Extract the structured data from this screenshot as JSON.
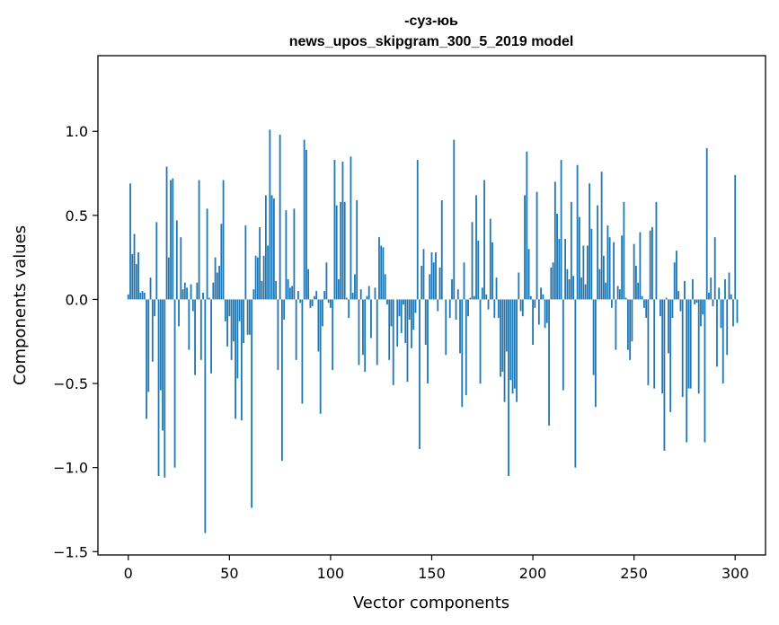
{
  "chart_data": {
    "type": "bar",
    "title_line1": "-суз-юь",
    "title_line2": "news_upos_skipgram_300_5_2019 model",
    "xlabel": "Vector components",
    "ylabel": "Components values",
    "xlim": [
      -15,
      315
    ],
    "ylim": [
      -1.52,
      1.45
    ],
    "xticks": [
      0,
      50,
      100,
      150,
      200,
      250,
      300
    ],
    "yticks": [
      1.0,
      0.5,
      0.0,
      -0.5,
      -1.0,
      -1.5
    ],
    "ytick_labels": [
      "1.0",
      "0.5",
      "0.0",
      "−0.5",
      "−1.0",
      "−1.5"
    ],
    "bar_color": "#1f77b4",
    "values": [
      0.03,
      0.69,
      0.27,
      0.39,
      0.21,
      0.28,
      0.04,
      0.05,
      0.04,
      -0.71,
      -0.55,
      0.13,
      -0.37,
      -0.1,
      0.46,
      -1.05,
      -0.54,
      -0.78,
      -1.06,
      0.79,
      0.25,
      0.71,
      0.72,
      -1.0,
      0.47,
      -0.16,
      0.37,
      0.06,
      0.1,
      0.07,
      -0.3,
      0.09,
      -0.07,
      -0.45,
      0.1,
      0.71,
      -0.36,
      0.04,
      -1.39,
      0.54,
      0.01,
      -0.44,
      0.1,
      0.25,
      0.16,
      0.2,
      0.45,
      0.71,
      -0.13,
      -0.28,
      -0.1,
      -0.36,
      -0.25,
      -0.71,
      -0.47,
      -0.13,
      -0.72,
      -0.26,
      0.44,
      -0.21,
      -0.21,
      -1.24,
      0.06,
      0.26,
      0.25,
      0.43,
      0.11,
      0.26,
      0.62,
      0.32,
      1.01,
      0.62,
      0.6,
      0.11,
      -0.42,
      0.98,
      -0.96,
      -0.12,
      0.53,
      0.12,
      0.07,
      0.08,
      0.54,
      -0.36,
      0.05,
      -0.02,
      -0.62,
      0.95,
      0.89,
      0.18,
      -0.05,
      -0.04,
      0.02,
      0.05,
      -0.31,
      -0.68,
      -0.16,
      0.05,
      0.22,
      -0.02,
      -0.05,
      -0.42,
      0.83,
      0.56,
      0.12,
      0.58,
      0.82,
      0.58,
      0.01,
      -0.11,
      0.85,
      0.04,
      0.15,
      0.59,
      -0.39,
      0.06,
      -0.33,
      -0.43,
      0.02,
      0.08,
      -0.23,
      0.0,
      0.07,
      -0.39,
      0.37,
      0.32,
      0.31,
      0.15,
      -0.03,
      -0.36,
      -0.16,
      -0.51,
      0.0,
      -0.28,
      -0.1,
      -0.2,
      -0.03,
      -0.26,
      -0.49,
      -0.12,
      -0.29,
      -0.18,
      -0.08,
      0.83,
      -0.89,
      0.2,
      0.3,
      -0.27,
      -0.5,
      0.15,
      0.28,
      0.22,
      0.28,
      -0.07,
      0.19,
      0.59,
      0.0,
      -0.33,
      0.0,
      -0.11,
      0.12,
      0.95,
      -0.12,
      0.06,
      -0.32,
      -0.64,
      0.22,
      -0.57,
      -0.1,
      0.01,
      0.46,
      0.02,
      0.62,
      0.35,
      -0.5,
      0.07,
      0.71,
      0.03,
      -0.06,
      0.48,
      0.34,
      -0.11,
      0.13,
      -0.11,
      -0.46,
      -0.43,
      -0.61,
      -0.31,
      -1.05,
      -0.48,
      -0.56,
      -0.53,
      -0.61,
      0.16,
      -0.07,
      -0.1,
      0.62,
      0.88,
      0.3,
      0.02,
      -0.27,
      -0.05,
      0.64,
      -0.15,
      0.07,
      0.03,
      -0.17,
      -0.14,
      -0.75,
      0.19,
      0.22,
      0.7,
      0.51,
      0.36,
      0.83,
      -0.54,
      0.36,
      0.18,
      0.12,
      0.58,
      0.14,
      -1.0,
      0.8,
      0.49,
      0.13,
      0.32,
      0.09,
      0.32,
      0.69,
      0.42,
      -0.45,
      -0.64,
      0.56,
      0.18,
      0.76,
      0.26,
      0.1,
      0.44,
      0.37,
      -0.05,
      0.34,
      -0.3,
      0.08,
      0.06,
      0.38,
      0.58,
      0.01,
      -0.3,
      -0.36,
      -0.25,
      0.33,
      0.2,
      0.1,
      0.4,
      0.02,
      -0.05,
      -0.11,
      -0.51,
      0.41,
      0.43,
      -0.53,
      0.58,
      0.0,
      -0.1,
      -0.56,
      -0.9,
      0.01,
      -0.32,
      -0.67,
      -0.11,
      0.22,
      0.29,
      0.05,
      -0.07,
      -0.58,
      0.11,
      -0.85,
      -0.53,
      -0.53,
      0.12,
      -0.03,
      -0.02,
      -0.56,
      -0.16,
      -0.09,
      -0.85,
      0.9,
      0.04,
      0.13,
      -0.04,
      0.37,
      -0.4,
      0.07,
      -0.17,
      -0.5,
      0.12,
      -0.33,
      0.16,
      0.03,
      -0.16,
      0.74,
      -0.14
    ]
  }
}
